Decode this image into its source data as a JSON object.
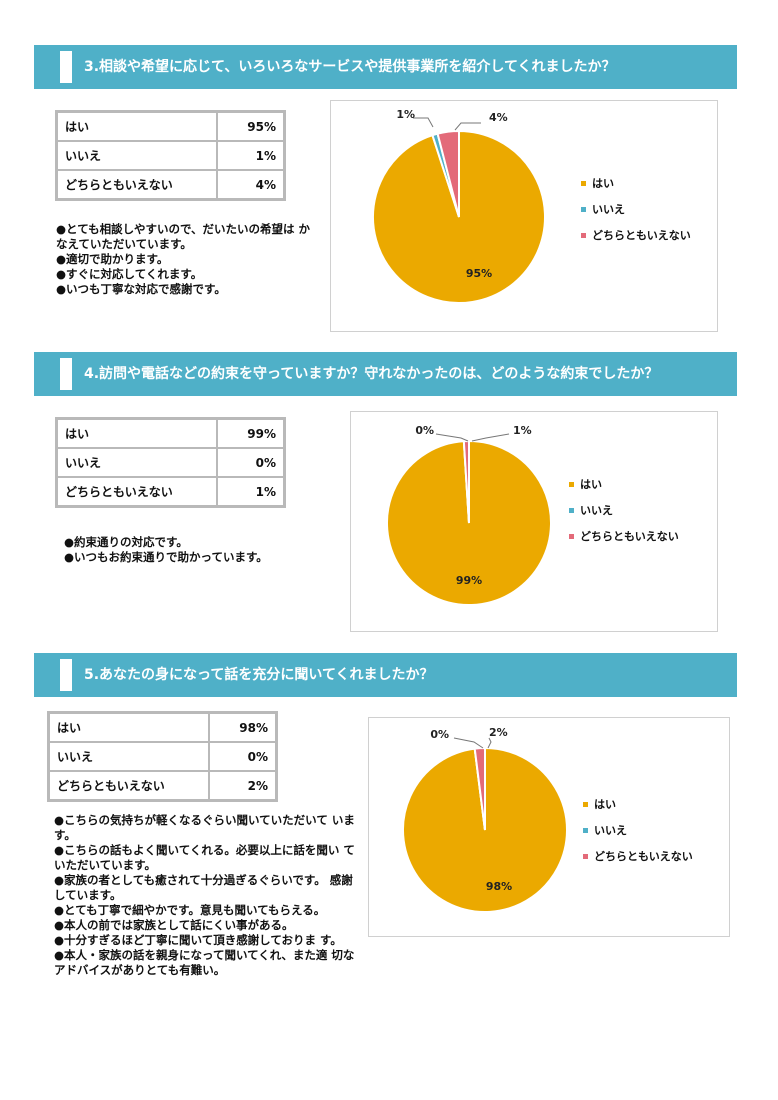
{
  "colors": {
    "header": "#4fb0c8",
    "yes": "#eba900",
    "no": "#4fb0c8",
    "neither": "#e36a79"
  },
  "sections": [
    {
      "title": "3.相談や希望に応じて、いろいろなサービスや提供事業所を紹介してくれましたか？",
      "table": [
        {
          "label": "はい",
          "value": "95%"
        },
        {
          "label": "いいえ",
          "value": "1%"
        },
        {
          "label": "どちらともいえない",
          "value": "4%"
        }
      ],
      "comments": [
        "●とても相談しやすいので、だいたいの希望は かなえていただいています。",
        "●適切で助かります。",
        "●すぐに対応してくれます。",
        "●いつも丁寧な対応で感謝です。"
      ]
    },
    {
      "title": "4.訪問や電話などの約束を守っていますか？守れなかったのは、どのような約束でしたか？",
      "table": [
        {
          "label": "はい",
          "value": "99%"
        },
        {
          "label": "いいえ",
          "value": "0%"
        },
        {
          "label": "どちらともいえない",
          "value": "1%"
        }
      ],
      "comments": [
        "●約束通りの対応です。",
        "●いつもお約束通りで助かっています。"
      ]
    },
    {
      "title": "5.あなたの身になって話を充分に聞いてくれましたか？",
      "table": [
        {
          "label": "はい",
          "value": "98%"
        },
        {
          "label": "いいえ",
          "value": "0%"
        },
        {
          "label": "どちらともいえない",
          "value": "2%"
        }
      ],
      "comments": [
        "●こちらの気持ちが軽くなるぐらい聞いていただいて います。",
        "●こちらの話もよく聞いてくれる。必要以上に話を聞い ていただいています。",
        "●家族の者としても癒されて十分過ぎるぐらいです。 感謝しています。",
        "●とても丁寧で細やかです。意見も聞いてもらえる。",
        "●本人の前では家族として話にくい事がある。",
        "●十分すぎるほど丁寧に聞いて頂き感謝しておりま す。",
        "●本人・家族の話を親身になって聞いてくれ、また適 切なアドバイスがありとても有難い。"
      ]
    }
  ],
  "chart_data": [
    {
      "type": "pie",
      "categories": [
        "はい",
        "いいえ",
        "どちらともいえない"
      ],
      "values": [
        95,
        1,
        4
      ],
      "data_labels": [
        "95%",
        "1%",
        "4%"
      ],
      "legend": "right"
    },
    {
      "type": "pie",
      "categories": [
        "はい",
        "いいえ",
        "どちらともいえない"
      ],
      "values": [
        99,
        0,
        1
      ],
      "data_labels": [
        "99%",
        "0%",
        "1%"
      ],
      "legend": "right"
    },
    {
      "type": "pie",
      "categories": [
        "はい",
        "いいえ",
        "どちらともいえない"
      ],
      "values": [
        98,
        0,
        2
      ],
      "data_labels": [
        "98%",
        "0%",
        "2%"
      ],
      "legend": "right"
    }
  ]
}
